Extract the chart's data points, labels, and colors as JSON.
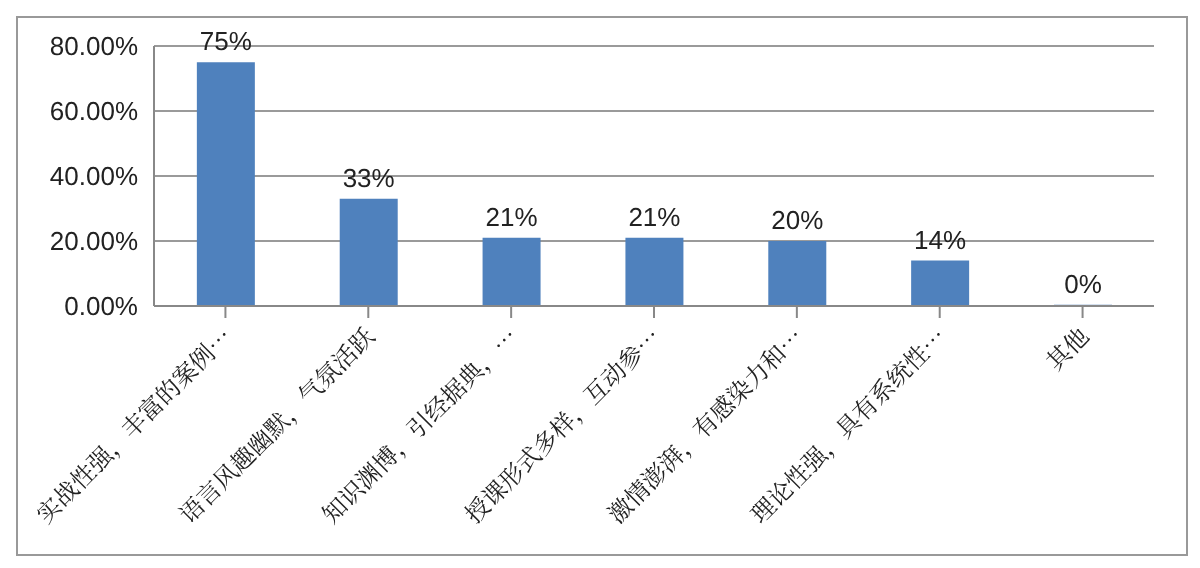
{
  "chart_data": {
    "type": "bar",
    "categories": [
      "实战性强，丰富的案例…",
      "语言风趣幽默，气氛活跃",
      "知识渊博，引经据典，…",
      "授课形式多样，互动参…",
      "激情澎湃，有感染力和…",
      "理论性强，具有系统性…",
      "其他"
    ],
    "values": [
      75,
      33,
      21,
      21,
      20,
      14,
      0.4
    ],
    "value_labels": [
      "75%",
      "33%",
      "21%",
      "21%",
      "20%",
      "14%",
      "0%"
    ],
    "color": "#4f81bd",
    "ylim": [
      0,
      80
    ],
    "yticks": [
      {
        "value": 0,
        "label": "0.00%"
      },
      {
        "value": 20,
        "label": "20.00%"
      },
      {
        "value": 40,
        "label": "40.00%"
      },
      {
        "value": 60,
        "label": "60.00%"
      },
      {
        "value": 80,
        "label": "80.00%"
      }
    ],
    "grid": "y",
    "legend": false
  }
}
